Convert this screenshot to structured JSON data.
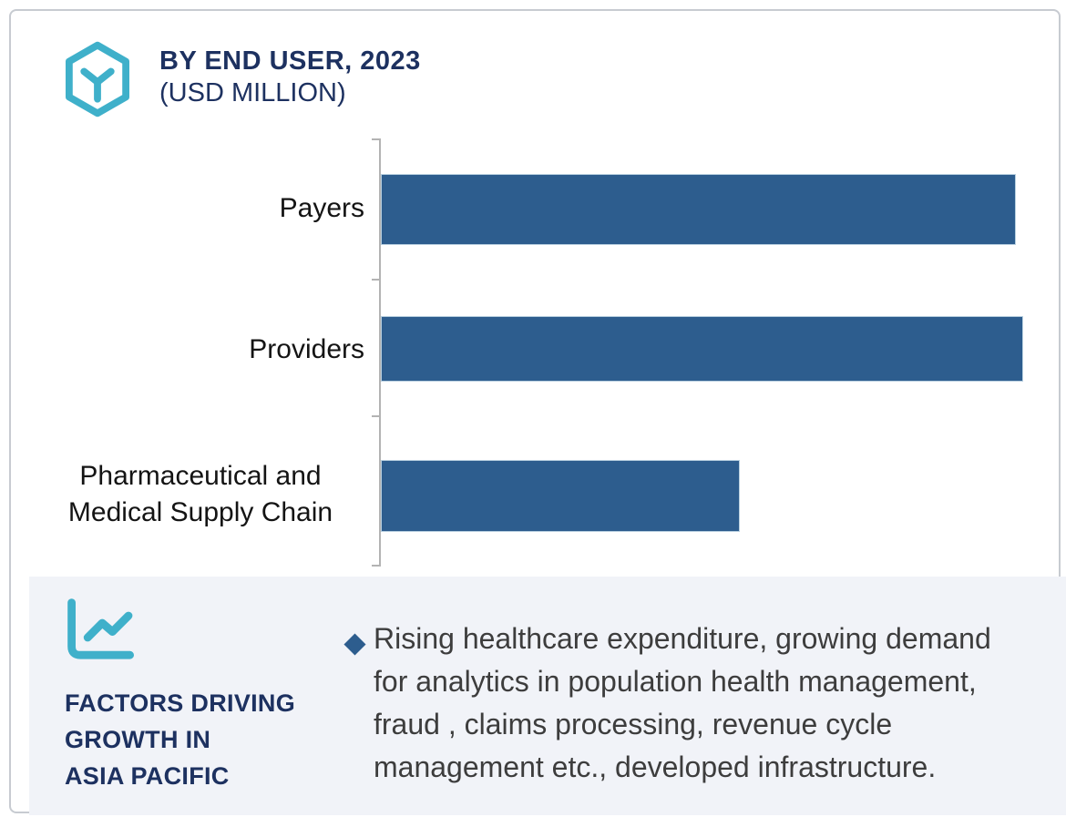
{
  "header": {
    "title_line1": "BY END USER, 2023",
    "title_line2": "(USD MILLION)",
    "logo_icon": "hexagon-cube-icon"
  },
  "chart_data": {
    "type": "bar",
    "orientation": "horizontal",
    "title": "BY END USER, 2023 (USD MILLION)",
    "categories": [
      "Payers",
      "Providers",
      "Pharmaceutical and Medical Supply Chain"
    ],
    "values": [
      98.8,
      100,
      55.9
    ],
    "values_note": "no numeric axis or data labels are shown; values are estimated bar lengths as percent of the longest bar (Providers)",
    "xlabel": "",
    "ylabel": "",
    "gridlines": false,
    "legend": "none",
    "bar_color": "#2d5d8e",
    "axis_color": "#b3b3b3"
  },
  "panel": {
    "icon": "line-chart-icon",
    "heading_lines": [
      "FACTORS DRIVING",
      "GROWTH IN",
      "ASIA PACIFIC"
    ],
    "bullet_marker": "diamond",
    "bullet_lines": [
      "Rising healthcare expenditure, growing demand",
      "for analytics in population health management,",
      "fraud , claims processing, revenue cycle",
      "management etc., developed infrastructure."
    ]
  },
  "colors": {
    "bar_blue": "#2d5d8e",
    "brand_navy": "#1d3160",
    "accent_teal": "#3fb0ca",
    "panel_background": "#f1f3f8",
    "body_text": "#3d3d3d",
    "axis_gray": "#b3b3b3",
    "card_border": "#c7cbd1"
  }
}
